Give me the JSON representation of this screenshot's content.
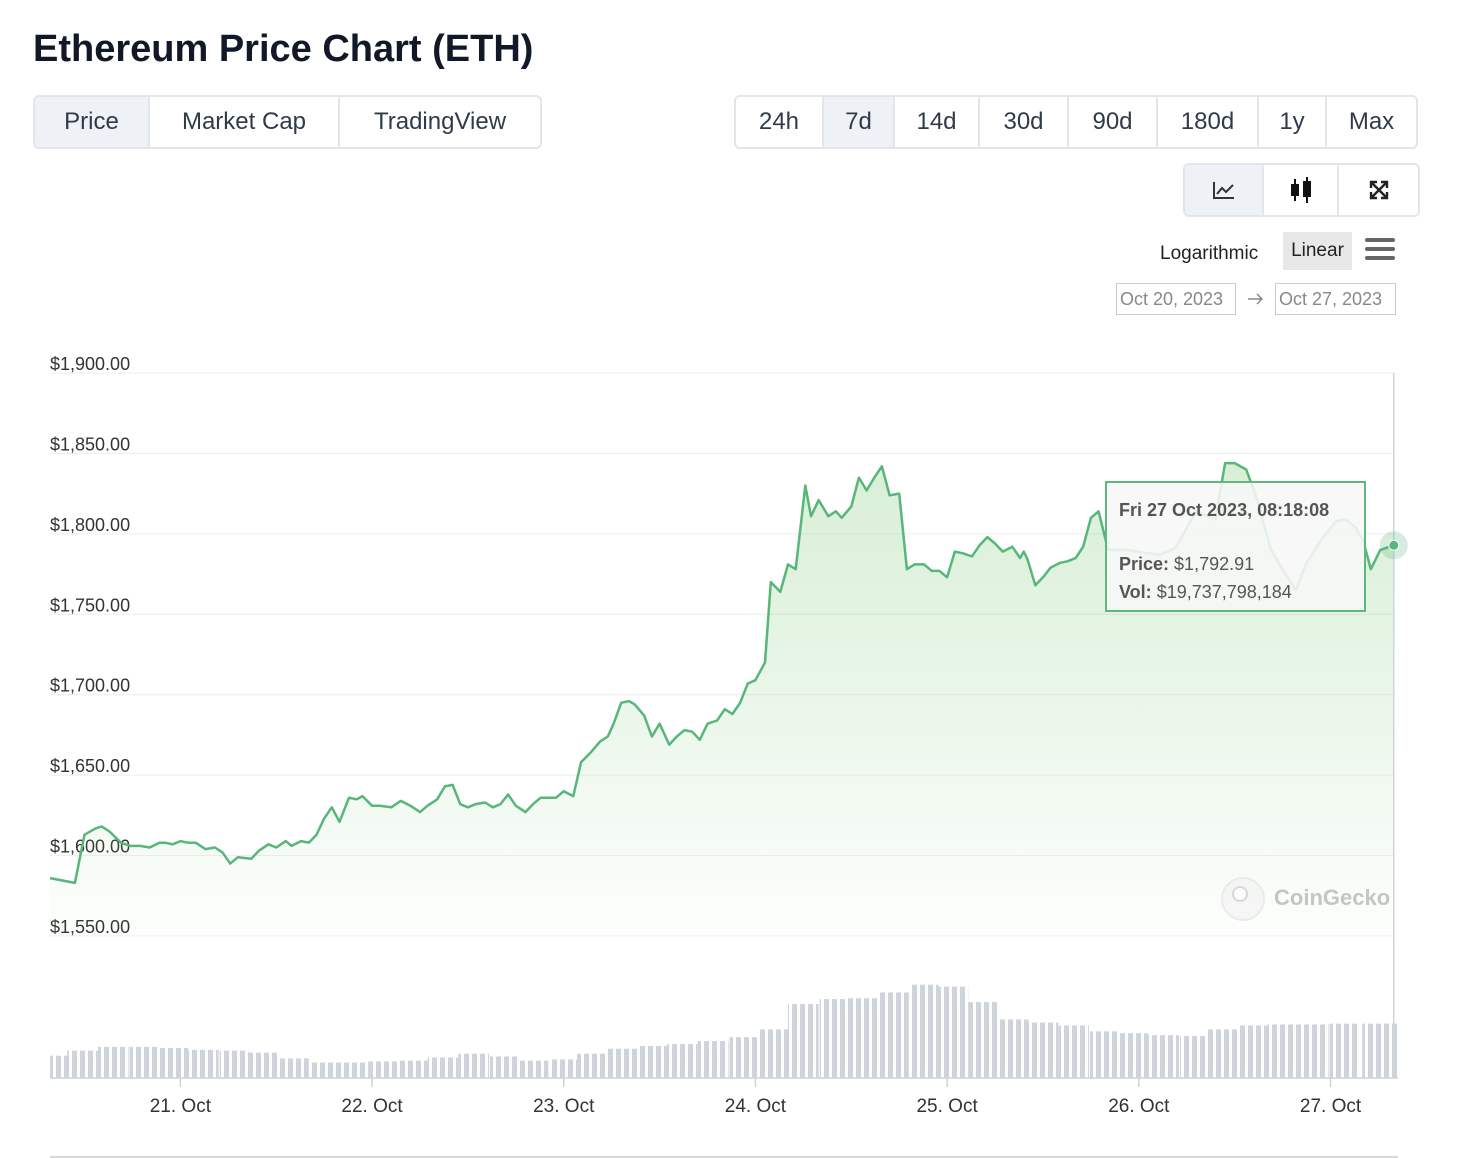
{
  "header": {
    "title": "Ethereum Price Chart (ETH)"
  },
  "tabs": [
    "Price",
    "Market Cap",
    "TradingView"
  ],
  "ranges": [
    "24h",
    "7d",
    "14d",
    "30d",
    "90d",
    "180d",
    "1y",
    "Max"
  ],
  "scale": [
    "Logarithmic",
    "Linear"
  ],
  "date_range": {
    "from": "Oct 20, 2023",
    "to": "Oct 27, 2023"
  },
  "watermark": "CoinGecko",
  "tooltip": {
    "title": "Fri 27 Oct 2023, 08:18:08",
    "price_label": "Price:",
    "price": "$1,792.91",
    "vol_label": "Vol:",
    "vol": "$19,737,798,184"
  },
  "chart_data": {
    "type": "line",
    "color": "#58b67b",
    "x": [
      20.32,
      20.45,
      20.5,
      20.56,
      20.59,
      20.63,
      20.69,
      20.74,
      20.79,
      20.84,
      20.89,
      20.92,
      20.96,
      21.0,
      21.04,
      21.08,
      21.13,
      21.18,
      21.22,
      21.26,
      21.3,
      21.37,
      21.41,
      21.46,
      21.5,
      21.55,
      21.58,
      21.63,
      21.67,
      21.71,
      21.75,
      21.79,
      21.83,
      21.88,
      21.92,
      21.95,
      22.0,
      22.04,
      22.1,
      22.15,
      22.2,
      22.25,
      22.29,
      22.34,
      22.38,
      22.42,
      22.46,
      22.5,
      22.54,
      22.59,
      22.63,
      22.67,
      22.71,
      22.75,
      22.8,
      22.84,
      22.88,
      22.92,
      22.96,
      23.0,
      23.05,
      23.09,
      23.14,
      23.19,
      23.23,
      23.26,
      23.3,
      23.34,
      23.37,
      23.42,
      23.46,
      23.5,
      23.55,
      23.59,
      23.63,
      23.67,
      23.71,
      23.75,
      23.8,
      23.84,
      23.88,
      23.92,
      23.96,
      24.0,
      24.05,
      24.08,
      24.13,
      24.17,
      24.21,
      24.26,
      24.29,
      24.33,
      24.38,
      24.42,
      24.45,
      24.5,
      24.54,
      24.58,
      24.62,
      24.66,
      24.7,
      24.75,
      24.79,
      24.83,
      24.88,
      24.92,
      24.96,
      25.0,
      25.04,
      25.08,
      25.13,
      25.17,
      25.21,
      25.25,
      25.29,
      25.34,
      25.38,
      25.4,
      25.42,
      25.46,
      25.5,
      25.54,
      25.59,
      25.63,
      25.67,
      25.71,
      25.75,
      25.79,
      25.84,
      25.93,
      26.11,
      26.19,
      26.3,
      26.4,
      26.45,
      26.5,
      26.56,
      26.61,
      26.69,
      26.77,
      26.82,
      26.87,
      26.95,
      27.03,
      27.08,
      27.13,
      27.17,
      27.21,
      27.26,
      27.33
    ],
    "values": [
      1586,
      1583,
      1613,
      1617,
      1618,
      1615,
      1608,
      1606,
      1606,
      1605,
      1608,
      1608,
      1607,
      1609,
      1608,
      1608,
      1604,
      1605,
      1602,
      1595,
      1599,
      1598,
      1603,
      1607,
      1605,
      1609,
      1606,
      1609,
      1608,
      1613,
      1623,
      1630,
      1621,
      1636,
      1635,
      1637,
      1631,
      1631,
      1630,
      1634,
      1631,
      1627,
      1631,
      1635,
      1643,
      1644,
      1632,
      1630,
      1632,
      1633,
      1630,
      1632,
      1638,
      1631,
      1627,
      1632,
      1636,
      1636,
      1636,
      1640,
      1637,
      1658,
      1664,
      1671,
      1674,
      1682,
      1695,
      1696,
      1694,
      1687,
      1674,
      1682,
      1669,
      1674,
      1678,
      1677,
      1672,
      1682,
      1684,
      1691,
      1688,
      1695,
      1707,
      1709,
      1720,
      1770,
      1764,
      1781,
      1778,
      1830,
      1811,
      1821,
      1811,
      1814,
      1810,
      1817,
      1835,
      1827,
      1835,
      1842,
      1824,
      1825,
      1778,
      1781,
      1781,
      1777,
      1777,
      1773,
      1789,
      1788,
      1786,
      1793,
      1798,
      1794,
      1789,
      1792,
      1785,
      1789,
      1784,
      1768,
      1773,
      1779,
      1782,
      1783,
      1785,
      1792,
      1810,
      1814,
      1790,
      1790,
      1787,
      1791,
      1814,
      1809,
      1844,
      1844,
      1840,
      1824,
      1790,
      1774,
      1765,
      1781,
      1796,
      1808,
      1809,
      1804,
      1796,
      1778,
      1790,
      1792.91
    ],
    "xlim": [
      20.32,
      27.35
    ],
    "xticks": [
      {
        "value": 21,
        "label": "21. Oct"
      },
      {
        "value": 22,
        "label": "22. Oct"
      },
      {
        "value": 23,
        "label": "23. Oct"
      },
      {
        "value": 24,
        "label": "24. Oct"
      },
      {
        "value": 25,
        "label": "25. Oct"
      },
      {
        "value": 26,
        "label": "26. Oct"
      },
      {
        "value": 27,
        "label": "27. Oct"
      }
    ],
    "ylim": [
      1550,
      1900
    ],
    "yticks": [
      {
        "value": 1550,
        "label": "$1,550.00"
      },
      {
        "value": 1600,
        "label": "$1,600.00"
      },
      {
        "value": 1650,
        "label": "$1,650.00"
      },
      {
        "value": 1700,
        "label": "$1,700.00"
      },
      {
        "value": 1750,
        "label": "$1,750.00"
      },
      {
        "value": 1800,
        "label": "$1,800.00"
      },
      {
        "value": 1850,
        "label": "$1,850.00"
      },
      {
        "value": 1900,
        "label": "$1,900.00"
      }
    ],
    "grid": true,
    "volume": {
      "type": "bar",
      "color": "#cfd4dc",
      "ylim": [
        0,
        50000000000
      ],
      "x": [
        20.34,
        20.49,
        20.65,
        20.81,
        20.96,
        21.12,
        21.28,
        21.43,
        21.59,
        21.75,
        21.9,
        22.06,
        22.22,
        22.37,
        22.53,
        22.69,
        22.84,
        23.0,
        23.15,
        23.31,
        23.47,
        23.62,
        23.78,
        23.94,
        24.09,
        24.25,
        24.41,
        24.56,
        24.72,
        24.88,
        25.03,
        25.19,
        25.35,
        25.5,
        25.66,
        25.82,
        25.97,
        26.13,
        26.29,
        26.44,
        26.6,
        26.75,
        26.91,
        27.07,
        27.22,
        27.33
      ],
      "values": [
        8100000000,
        9900000000,
        11300000000,
        11300000000,
        10900000000,
        10200000000,
        9900000000,
        9200000000,
        7100000000,
        5600000000,
        5600000000,
        6000000000,
        6300000000,
        7400000000,
        8800000000,
        7800000000,
        6300000000,
        6700000000,
        8800000000,
        10600000000,
        11600000000,
        12300000000,
        13400000000,
        14800000000,
        17600000000,
        26800000000,
        28600000000,
        28900000000,
        31000000000,
        33800000000,
        33100000000,
        27500000000,
        21200000000,
        20100000000,
        19000000000,
        16900000000,
        16200000000,
        15500000000,
        15200000000,
        17600000000,
        19000000000,
        19400000000,
        19400000000,
        19700000000,
        19700000000,
        19737798184
      ]
    }
  }
}
